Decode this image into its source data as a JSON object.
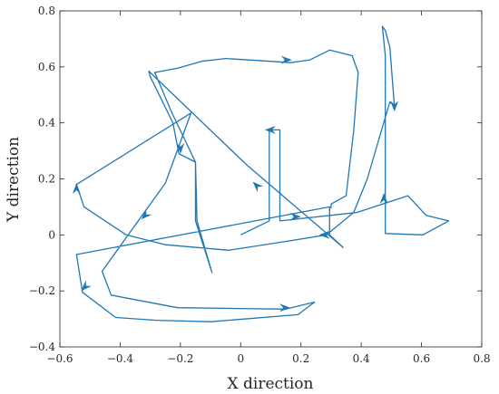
{
  "chart_data": {
    "type": "line",
    "xlabel": "X direction",
    "ylabel": "Y direction",
    "xlim": [
      -0.6,
      0.8
    ],
    "ylim": [
      -0.4,
      0.8
    ],
    "xticks": [
      -0.6,
      -0.4,
      -0.2,
      0,
      0.2,
      0.4,
      0.6,
      0.8
    ],
    "xtick_labels": [
      "−0.6",
      "−0.4",
      "−0.2",
      "0",
      "0.2",
      "0.4",
      "0.6",
      "0.8"
    ],
    "yticks": [
      -0.4,
      -0.2,
      0,
      0.2,
      0.4,
      0.6,
      0.8
    ],
    "ytick_labels": [
      "−0.4",
      "−0.2",
      "0",
      "0.2",
      "0.4",
      "0.6",
      "0.8"
    ],
    "grid": false,
    "line_color": "#1f77b4",
    "series": [
      {
        "values": [
          [
            0.0,
            0.0
          ],
          [
            0.095,
            0.05
          ],
          [
            0.095,
            0.375
          ],
          [
            0.13,
            0.375
          ],
          [
            0.13,
            0.05
          ],
          [
            0.385,
            0.08
          ],
          [
            0.555,
            0.14
          ],
          [
            0.615,
            0.07
          ],
          [
            0.69,
            0.05
          ],
          [
            0.605,
            0.0
          ],
          [
            0.48,
            0.005
          ],
          [
            0.48,
            0.64
          ],
          [
            0.47,
            0.745
          ],
          [
            0.48,
            0.73
          ],
          [
            0.495,
            0.67
          ],
          [
            0.51,
            0.46
          ],
          [
            0.495,
            0.475
          ],
          [
            0.42,
            0.2
          ],
          [
            0.375,
            0.08
          ],
          [
            0.285,
            0.0
          ],
          [
            0.17,
            -0.02
          ],
          [
            -0.04,
            -0.055
          ],
          [
            -0.25,
            -0.035
          ],
          [
            -0.38,
            0.0
          ],
          [
            -0.52,
            0.1
          ],
          [
            -0.545,
            0.18
          ],
          [
            -0.165,
            0.435
          ],
          [
            -0.25,
            0.185
          ],
          [
            -0.46,
            -0.13
          ],
          [
            -0.43,
            -0.215
          ],
          [
            -0.21,
            -0.26
          ],
          [
            0.15,
            -0.265
          ],
          [
            0.245,
            -0.24
          ],
          [
            0.19,
            -0.285
          ],
          [
            -0.1,
            -0.31
          ],
          [
            -0.28,
            -0.305
          ],
          [
            -0.415,
            -0.295
          ],
          [
            -0.525,
            -0.205
          ],
          [
            -0.545,
            -0.07
          ],
          [
            0.295,
            0.1
          ],
          [
            0.295,
            0.0
          ],
          [
            0.34,
            -0.045
          ],
          [
            0.02,
            0.25
          ],
          [
            -0.305,
            0.585
          ],
          [
            -0.3,
            0.565
          ],
          [
            -0.225,
            0.4
          ],
          [
            -0.205,
            0.29
          ],
          [
            -0.15,
            0.26
          ],
          [
            -0.145,
            0.05
          ],
          [
            -0.095,
            -0.135
          ],
          [
            -0.15,
            0.05
          ],
          [
            -0.15,
            0.26
          ],
          [
            -0.23,
            0.44
          ],
          [
            -0.285,
            0.58
          ],
          [
            -0.21,
            0.595
          ],
          [
            -0.13,
            0.62
          ],
          [
            -0.05,
            0.63
          ],
          [
            0.1,
            0.62
          ],
          [
            0.165,
            0.615
          ],
          [
            0.23,
            0.625
          ],
          [
            0.295,
            0.66
          ],
          [
            0.37,
            0.64
          ],
          [
            0.39,
            0.58
          ],
          [
            0.375,
            0.37
          ],
          [
            0.35,
            0.14
          ],
          [
            0.3,
            0.11
          ],
          [
            0.3,
            0.095
          ]
        ]
      }
    ],
    "arrow_markers": [
      {
        "x": 0.17,
        "y": 0.625,
        "dir": "right"
      },
      {
        "x": 0.08,
        "y": 0.375,
        "dir": "left"
      },
      {
        "x": -0.2,
        "y": 0.29,
        "dir": "down"
      },
      {
        "x": 0.04,
        "y": 0.19,
        "dir": "up-left"
      },
      {
        "x": 0.2,
        "y": 0.065,
        "dir": "right"
      },
      {
        "x": 0.26,
        "y": 0.0,
        "dir": "left"
      },
      {
        "x": 0.475,
        "y": 0.15,
        "dir": "up"
      },
      {
        "x": 0.51,
        "y": 0.44,
        "dir": "down"
      },
      {
        "x": -0.545,
        "y": 0.185,
        "dir": "up"
      },
      {
        "x": -0.33,
        "y": 0.055,
        "dir": "down-left"
      },
      {
        "x": -0.53,
        "y": -0.2,
        "dir": "down-left"
      },
      {
        "x": 0.165,
        "y": -0.26,
        "dir": "right"
      }
    ]
  }
}
